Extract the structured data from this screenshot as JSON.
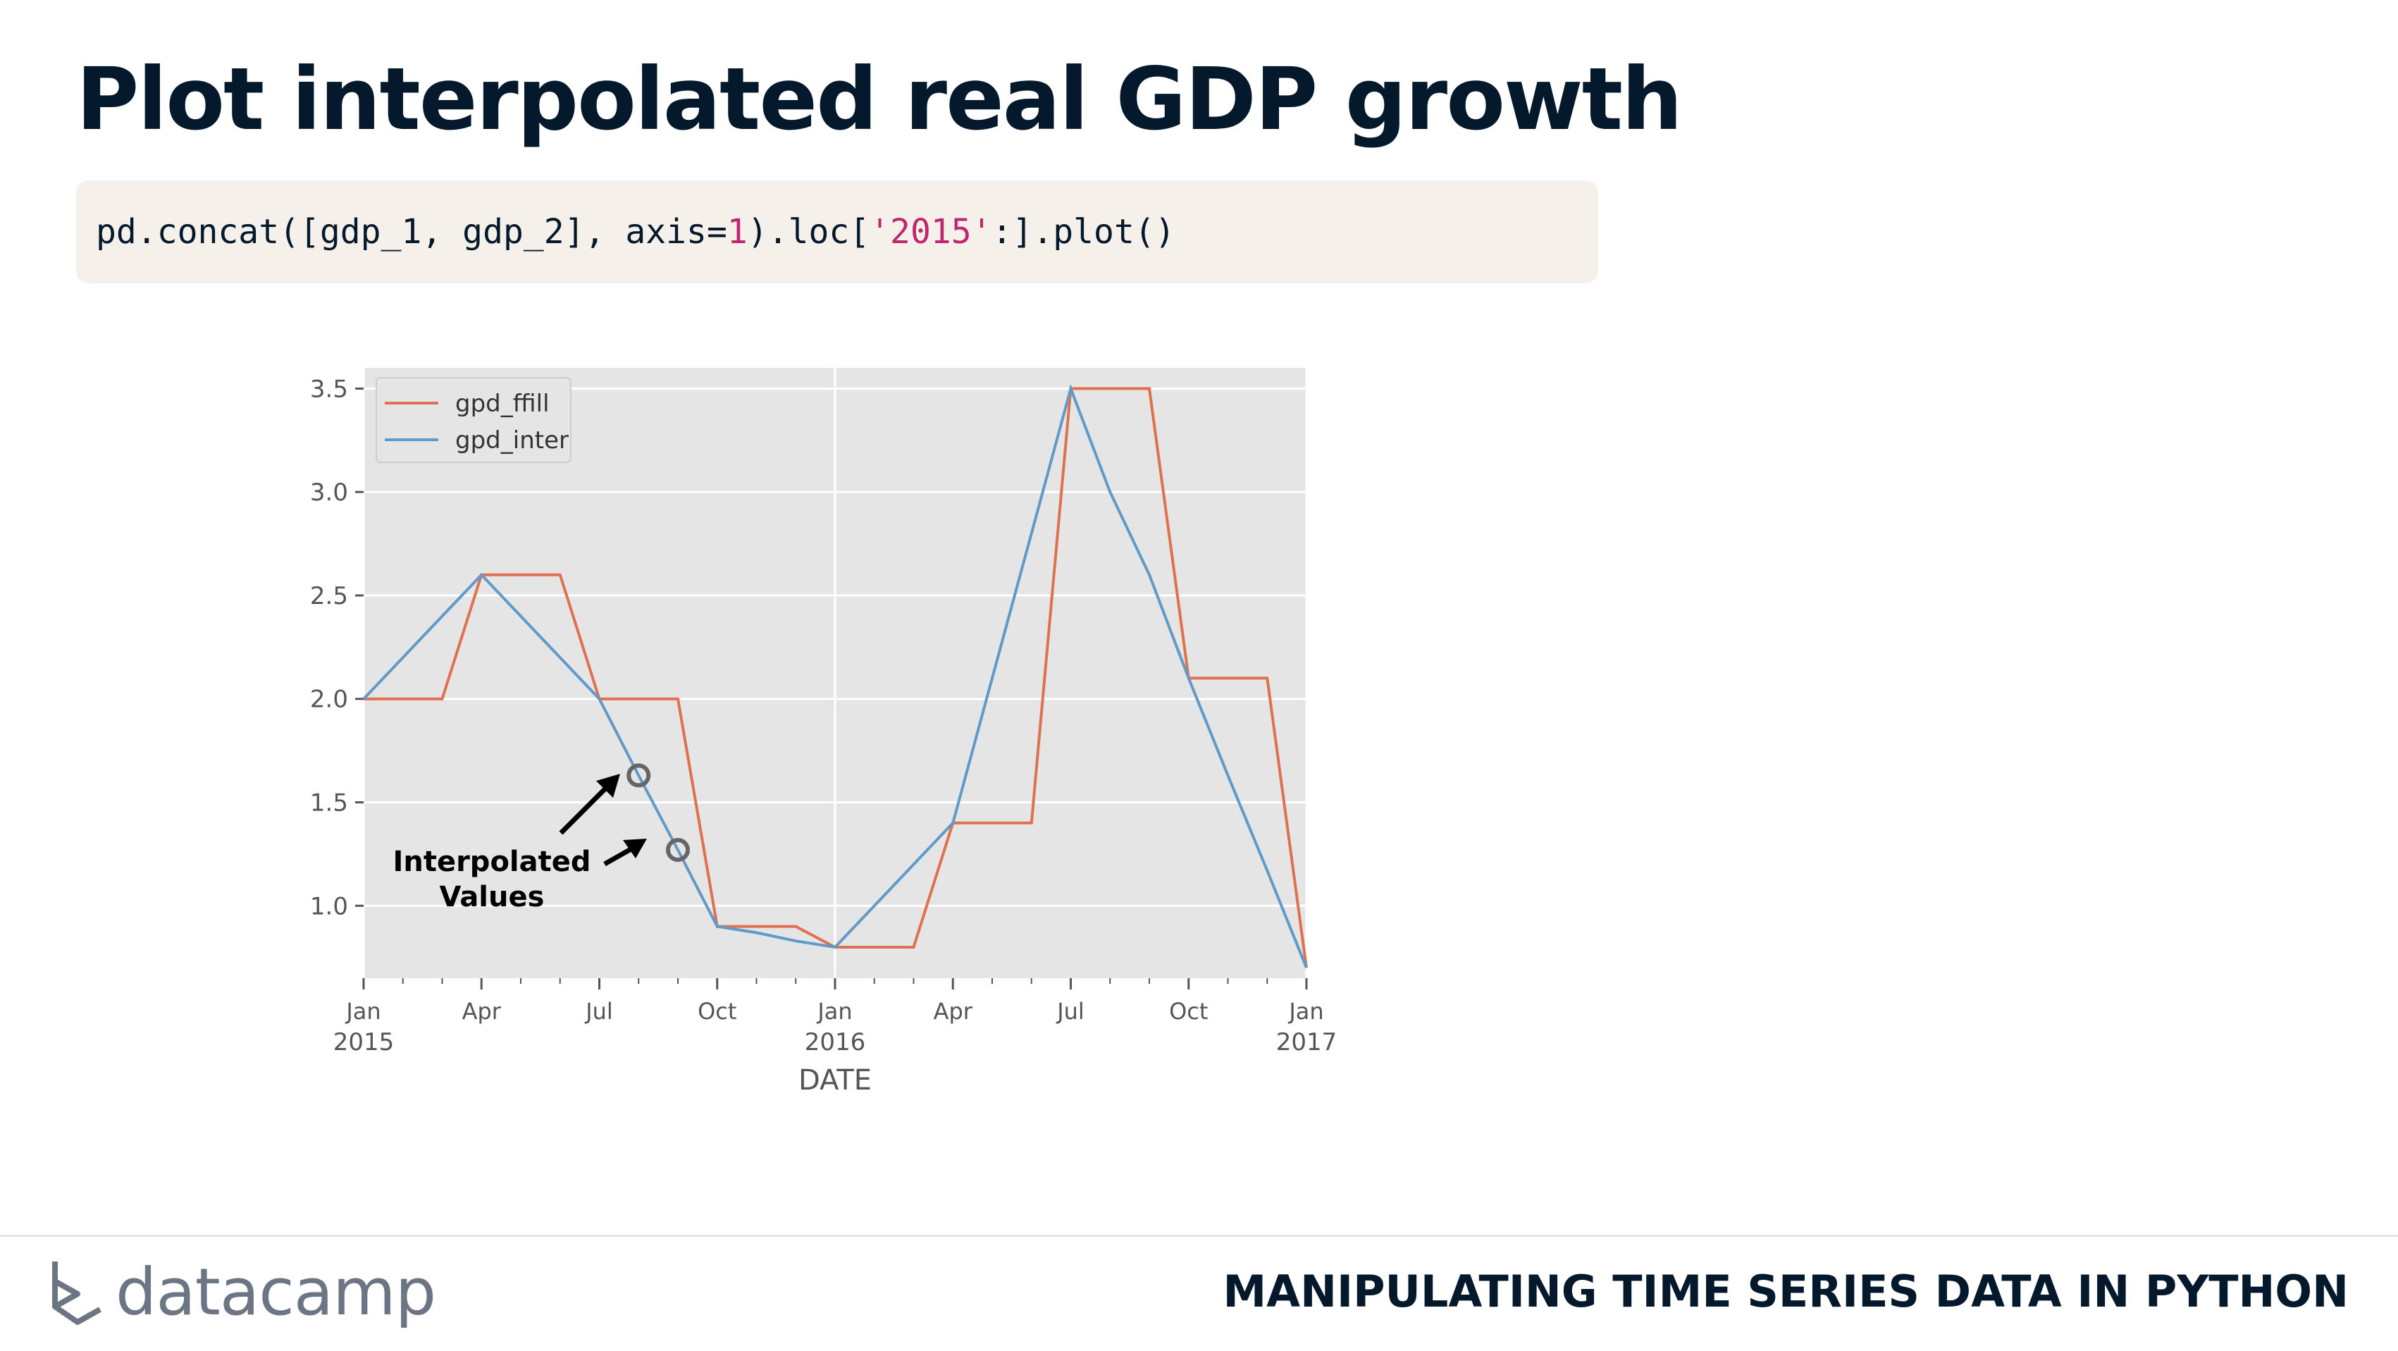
{
  "slide": {
    "title": "Plot interpolated real GDP growth",
    "footer_course": "MANIPULATING TIME SERIES DATA IN PYTHON",
    "logo_text": "datacamp",
    "logo_icon": "datacamp-logo-icon"
  },
  "code": {
    "part1": "pd.concat([gdp_1, gdp_2], axis=",
    "num": "1",
    "part2": ").loc[",
    "str": "'2015'",
    "part3": ":].plot()"
  },
  "annotation": {
    "line1": "Interpolated",
    "line2": "Values"
  },
  "colors": {
    "ffill": "#e0714f",
    "inter": "#5f9ac9",
    "plot_bg": "#e5e5e5",
    "title": "#05192d"
  },
  "chart_data": {
    "type": "line",
    "xlabel": "DATE",
    "ylabel": "",
    "ylim": [
      0.65,
      3.6
    ],
    "grid": true,
    "legend_placement": "top-left",
    "x": [
      "2015-01",
      "2015-02",
      "2015-03",
      "2015-04",
      "2015-05",
      "2015-06",
      "2015-07",
      "2015-08",
      "2015-09",
      "2015-10",
      "2015-11",
      "2015-12",
      "2016-01",
      "2016-02",
      "2016-03",
      "2016-04",
      "2016-05",
      "2016-06",
      "2016-07",
      "2016-08",
      "2016-09",
      "2016-10",
      "2016-11",
      "2016-12",
      "2017-01"
    ],
    "series": [
      {
        "name": "gpd_ffill",
        "values": [
          2.0,
          2.0,
          2.0,
          2.6,
          2.6,
          2.6,
          2.0,
          2.0,
          2.0,
          0.9,
          0.9,
          0.9,
          0.8,
          0.8,
          0.8,
          1.4,
          1.4,
          1.4,
          3.5,
          3.5,
          3.5,
          2.1,
          2.1,
          2.1,
          0.7
        ]
      },
      {
        "name": "gpd_inter",
        "values": [
          2.0,
          2.2,
          2.4,
          2.6,
          2.4,
          2.2,
          2.0,
          1.63,
          1.27,
          0.9,
          0.87,
          0.83,
          0.8,
          1.0,
          1.2,
          1.4,
          2.1,
          2.8,
          3.5,
          3.0,
          2.6,
          2.1,
          1.63,
          1.17,
          0.7
        ]
      }
    ],
    "yticks": [
      "1.0",
      "1.5",
      "2.0",
      "2.5",
      "3.0",
      "3.5"
    ],
    "xticks_major": [
      {
        "month": "Jan",
        "year": "2015"
      },
      {
        "month": "Apr",
        "year": ""
      },
      {
        "month": "Jul",
        "year": ""
      },
      {
        "month": "Oct",
        "year": ""
      },
      {
        "month": "Jan",
        "year": "2016"
      },
      {
        "month": "Apr",
        "year": ""
      },
      {
        "month": "Jul",
        "year": ""
      },
      {
        "month": "Oct",
        "year": ""
      },
      {
        "month": "Jan",
        "year": "2017"
      }
    ],
    "highlighted_points": [
      "2015-08",
      "2015-09"
    ]
  }
}
